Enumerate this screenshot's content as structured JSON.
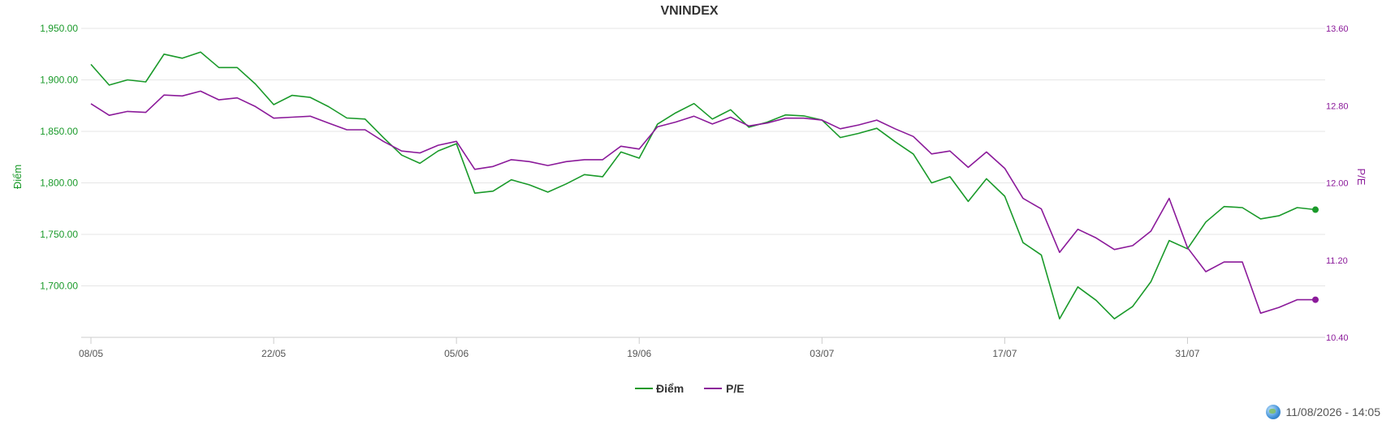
{
  "colors": {
    "diem": "#1a9a2a",
    "pe": "#8b1a9a",
    "grid": "#e6e6e6",
    "axis": "#cccccc"
  },
  "timestamp": "11/08/2026 - 14:05",
  "timestamp_icon": "globe-icon",
  "chart_data": {
    "type": "line",
    "title": "VNINDEX",
    "ylabel": "Điểm",
    "ylabel_right": "P/E",
    "ylim": [
      1650,
      1950
    ],
    "ylim_right": [
      10.4,
      13.6
    ],
    "yticks": [
      "1,700.00",
      "1,750.00",
      "1,800.00",
      "1,850.00",
      "1,900.00",
      "1,950.00"
    ],
    "yticks_right": [
      "10.40",
      "11.20",
      "12.00",
      "12.80",
      "13.60"
    ],
    "x_tick_labels": [
      "08/05",
      "22/05",
      "05/06",
      "19/06",
      "03/07",
      "17/07",
      "31/07"
    ],
    "x_tick_indices": [
      0,
      10,
      20,
      30,
      40,
      50,
      60
    ],
    "legend_position": "bottom-center",
    "grid": true,
    "series": [
      {
        "name": "Điểm",
        "axis": "left",
        "values": [
          1915,
          1895,
          1900,
          1898,
          1925,
          1921,
          1927,
          1912,
          1912,
          1896,
          1876,
          1885,
          1883,
          1874,
          1863,
          1862,
          1844,
          1827,
          1819,
          1831,
          1838,
          1790,
          1792,
          1803,
          1798,
          1791,
          1799,
          1808,
          1806,
          1830,
          1824,
          1857,
          1868,
          1877,
          1862,
          1871,
          1854,
          1859,
          1866,
          1865,
          1861,
          1844,
          1848,
          1853,
          1840,
          1828,
          1800,
          1806,
          1782,
          1804,
          1787,
          1742,
          1730,
          1668,
          1699,
          1686,
          1668,
          1680,
          1704,
          1744,
          1736,
          1762,
          1777,
          1776,
          1765,
          1768,
          1776,
          1774
        ]
      },
      {
        "name": "P/E",
        "axis": "right",
        "values": [
          12.82,
          12.7,
          12.74,
          12.73,
          12.91,
          12.9,
          12.95,
          12.86,
          12.88,
          12.79,
          12.67,
          12.68,
          12.69,
          12.62,
          12.55,
          12.55,
          12.43,
          12.33,
          12.31,
          12.39,
          12.43,
          12.14,
          12.17,
          12.24,
          12.22,
          12.18,
          12.22,
          12.24,
          12.24,
          12.38,
          12.35,
          12.58,
          12.63,
          12.69,
          12.61,
          12.68,
          12.59,
          12.62,
          12.67,
          12.67,
          12.65,
          12.56,
          12.6,
          12.65,
          12.56,
          12.48,
          12.3,
          12.33,
          12.16,
          12.32,
          12.15,
          11.84,
          11.73,
          11.28,
          11.52,
          11.43,
          11.31,
          11.35,
          11.5,
          11.84,
          11.33,
          11.08,
          11.18,
          11.18,
          10.65,
          10.71,
          10.79,
          10.79
        ]
      }
    ]
  }
}
